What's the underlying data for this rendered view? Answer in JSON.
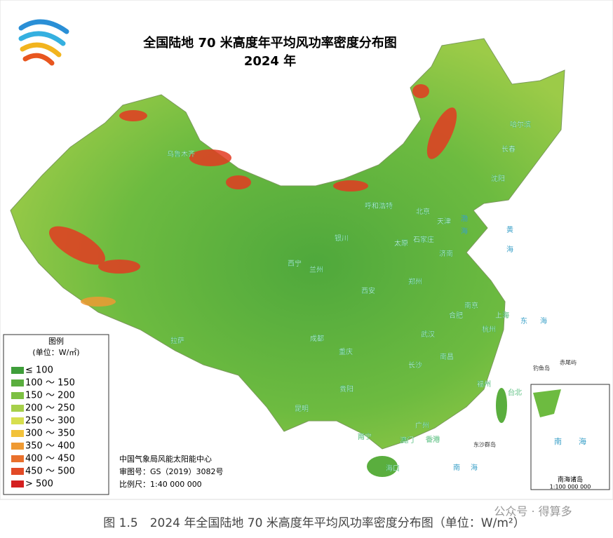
{
  "header": {
    "title": "全国陆地 70 米高度年平均风功率密度分布图",
    "subtitle": "2024 年"
  },
  "legend": {
    "title": "图例",
    "unit": "(单位：W/㎡)",
    "items": [
      {
        "label": "≤ 100",
        "color": "#3f9e3a"
      },
      {
        "label": "100 ～ 150",
        "color": "#5aae3e"
      },
      {
        "label": "150 ～ 200",
        "color": "#7cc043"
      },
      {
        "label": "200 ～ 250",
        "color": "#a6d04a"
      },
      {
        "label": "250 ～ 300",
        "color": "#d7df4e"
      },
      {
        "label": "300 ～ 350",
        "color": "#f2c23a"
      },
      {
        "label": "350 ～ 400",
        "color": "#ef9a33"
      },
      {
        "label": "400 ～ 450",
        "color": "#e9702c"
      },
      {
        "label": "450 ～ 500",
        "color": "#e24a26"
      },
      {
        "label": "> 500",
        "color": "#d42020"
      }
    ]
  },
  "cities": [
    "乌鲁木齐",
    "哈尔滨",
    "长春",
    "沈阳",
    "呼和浩特",
    "北京",
    "天津",
    "银川",
    "太原",
    "石家庄",
    "济南",
    "西宁",
    "兰州",
    "郑州",
    "西安",
    "合肥",
    "南京",
    "上海",
    "杭州",
    "拉萨",
    "成都",
    "重庆",
    "武汉",
    "南昌",
    "长沙",
    "贵阳",
    "福州",
    "台北",
    "昆明",
    "南宁",
    "广州",
    "澳门",
    "香港",
    "海口"
  ],
  "seas": [
    "渤",
    "海",
    "黄",
    "海",
    "东",
    "海",
    "南",
    "海",
    "钓鱼岛",
    "赤尾屿",
    "东沙群岛"
  ],
  "inset": {
    "sea_1": "南",
    "sea_2": "海",
    "label": "南海诸岛",
    "scale": "1:100 000 000"
  },
  "credits": [
    "中国气象局风能太阳能中心",
    "审图号：GS（2019）3082号",
    "比例尺：1:40 000 000"
  ],
  "caption": "图 1.5　2024 年全国陆地 70 米高度年平均风功率密度分布图（单位：W/m²）",
  "watermark": "公众号 · 得算多"
}
